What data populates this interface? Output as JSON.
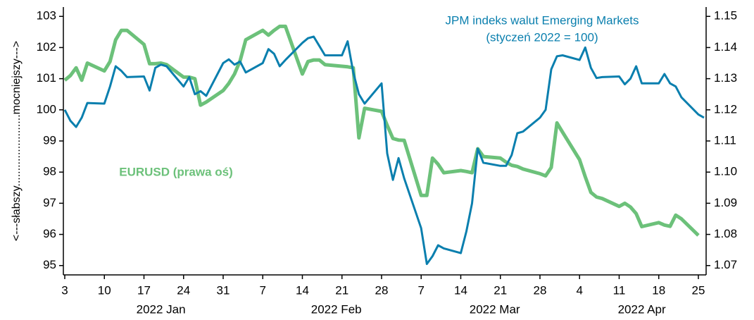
{
  "chart_data": {
    "type": "line",
    "y_axis_label": "<---słabszy.......................mocniejszy--->",
    "annotations": [
      "(styczeń 2022 = 100)"
    ],
    "x": [
      "2022-01-03",
      "2022-01-04",
      "2022-01-05",
      "2022-01-06",
      "2022-01-07",
      "2022-01-10",
      "2022-01-11",
      "2022-01-12",
      "2022-01-13",
      "2022-01-14",
      "2022-01-17",
      "2022-01-18",
      "2022-01-19",
      "2022-01-20",
      "2022-01-21",
      "2022-01-24",
      "2022-01-25",
      "2022-01-26",
      "2022-01-27",
      "2022-01-28",
      "2022-01-31",
      "2022-02-01",
      "2022-02-02",
      "2022-02-03",
      "2022-02-04",
      "2022-02-07",
      "2022-02-08",
      "2022-02-09",
      "2022-02-10",
      "2022-02-11",
      "2022-02-14",
      "2022-02-15",
      "2022-02-16",
      "2022-02-17",
      "2022-02-18",
      "2022-02-21",
      "2022-02-22",
      "2022-02-23",
      "2022-02-24",
      "2022-02-25",
      "2022-02-28",
      "2022-03-01",
      "2022-03-02",
      "2022-03-03",
      "2022-03-04",
      "2022-03-07",
      "2022-03-08",
      "2022-03-09",
      "2022-03-10",
      "2022-03-11",
      "2022-03-14",
      "2022-03-15",
      "2022-03-16",
      "2022-03-17",
      "2022-03-18",
      "2022-03-21",
      "2022-03-22",
      "2022-03-23",
      "2022-03-24",
      "2022-03-25",
      "2022-03-28",
      "2022-03-29",
      "2022-03-30",
      "2022-03-31",
      "2022-04-01",
      "2022-04-04",
      "2022-04-05",
      "2022-04-06",
      "2022-04-07",
      "2022-04-08",
      "2022-04-11",
      "2022-04-12",
      "2022-04-13",
      "2022-04-14",
      "2022-04-15",
      "2022-04-18",
      "2022-04-19",
      "2022-04-20",
      "2022-04-21",
      "2022-04-22",
      "2022-04-25",
      "2022-04-26"
    ],
    "series": [
      {
        "name": "JPM indeks walut Emerging Markets",
        "color": "#0a7fae",
        "axis": "y",
        "values": [
          100.0,
          99.65,
          99.45,
          99.75,
          100.22,
          100.2,
          100.75,
          101.4,
          101.25,
          101.05,
          101.07,
          100.62,
          101.35,
          101.45,
          101.4,
          100.75,
          101.05,
          100.5,
          100.6,
          100.45,
          101.5,
          101.62,
          101.45,
          101.55,
          101.2,
          101.5,
          101.95,
          101.8,
          101.4,
          101.6,
          102.15,
          102.3,
          102.35,
          102.05,
          101.75,
          101.75,
          102.2,
          101.2,
          100.5,
          100.2,
          100.85,
          98.6,
          97.75,
          98.45,
          97.8,
          96.2,
          95.05,
          95.3,
          95.65,
          95.55,
          95.4,
          96.1,
          97.0,
          98.75,
          98.3,
          98.2,
          98.2,
          98.55,
          99.25,
          99.3,
          99.75,
          100.0,
          101.3,
          101.72,
          101.75,
          101.6,
          102.0,
          101.35,
          101.02,
          101.05,
          101.07,
          100.82,
          101.0,
          101.4,
          100.85,
          100.85,
          101.15,
          100.85,
          100.75,
          100.4,
          99.85,
          99.75
        ]
      },
      {
        "name": "EURUSD (prawa oś)",
        "color": "#6cc17a",
        "axis": "y2",
        "values": [
          1.1295,
          1.131,
          1.1335,
          1.1295,
          1.135,
          1.1325,
          1.1355,
          1.1425,
          1.1455,
          1.1455,
          1.141,
          1.1348,
          1.1348,
          1.135,
          1.1345,
          1.1305,
          1.1305,
          1.13,
          1.1215,
          1.1225,
          1.1262,
          1.1285,
          1.1315,
          1.1358,
          1.1425,
          1.1455,
          1.144,
          1.1455,
          1.1468,
          1.1468,
          1.1315,
          1.1355,
          1.136,
          1.136,
          1.1345,
          1.134,
          1.1338,
          1.1335,
          1.111,
          1.1205,
          1.1195,
          1.115,
          1.1108,
          1.1103,
          1.1102,
          1.0925,
          1.0925,
          1.1045,
          1.1025,
          1.0998,
          1.1005,
          1.1002,
          1.0998,
          1.1075,
          1.105,
          1.1045,
          1.1032,
          1.1022,
          1.1018,
          1.101,
          1.0995,
          1.0988,
          1.1015,
          1.1158,
          1.1128,
          1.104,
          1.0985,
          1.0935,
          1.092,
          1.0915,
          1.089,
          1.09,
          1.0888,
          1.0867,
          1.0825,
          1.0838,
          1.083,
          1.0826,
          1.0862,
          1.085,
          1.0797,
          null
        ]
      }
    ],
    "xlim": [
      "2022-01-03",
      "2022-04-26"
    ],
    "xticks": [
      {
        "value": "2022-01-03",
        "label": "3"
      },
      {
        "value": "2022-01-10",
        "label": "10"
      },
      {
        "value": "2022-01-17",
        "label": "17"
      },
      {
        "value": "2022-01-24",
        "label": "24"
      },
      {
        "value": "2022-01-31",
        "label": "31"
      },
      {
        "value": "2022-02-07",
        "label": "7"
      },
      {
        "value": "2022-02-14",
        "label": "14"
      },
      {
        "value": "2022-02-21",
        "label": "21"
      },
      {
        "value": "2022-02-28",
        "label": "28"
      },
      {
        "value": "2022-03-07",
        "label": "7"
      },
      {
        "value": "2022-03-14",
        "label": "14"
      },
      {
        "value": "2022-03-21",
        "label": "21"
      },
      {
        "value": "2022-03-28",
        "label": "28"
      },
      {
        "value": "2022-04-04",
        "label": "4"
      },
      {
        "value": "2022-04-11",
        "label": "11"
      },
      {
        "value": "2022-04-18",
        "label": "18"
      },
      {
        "value": "2022-04-25",
        "label": "25"
      }
    ],
    "month_labels": [
      {
        "value": "2022-01-20",
        "label": "2022 Jan"
      },
      {
        "value": "2022-02-20",
        "label": "2022 Feb"
      },
      {
        "value": "2022-03-20",
        "label": "2022 Mar"
      },
      {
        "value": "2022-04-15",
        "label": "2022 Apr"
      }
    ],
    "ylim": [
      94.7,
      103.3
    ],
    "yticks": [
      95,
      96,
      97,
      98,
      99,
      100,
      101,
      102,
      103
    ],
    "y2lim": [
      1.067,
      1.153
    ],
    "y2ticks": [
      1.07,
      1.08,
      1.09,
      {
        "value": 1.1,
        "label": "1.10"
      },
      1.11,
      1.12,
      1.13,
      1.14,
      1.15
    ],
    "grid": false
  }
}
